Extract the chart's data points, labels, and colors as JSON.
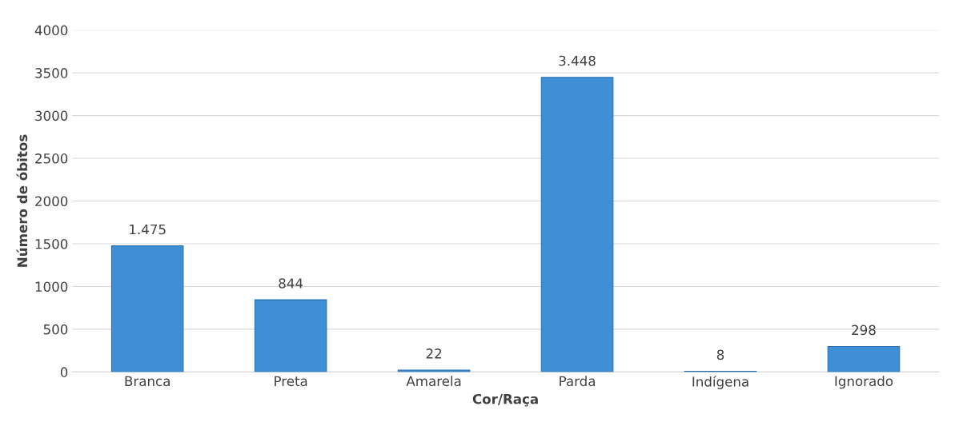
{
  "chart_data": {
    "type": "bar",
    "xlabel": "Cor/Raça",
    "ylabel": "Número de óbitos",
    "categories": [
      "Branca",
      "Preta",
      "Amarela",
      "Parda",
      "Indígena",
      "Ignorado"
    ],
    "values": [
      1475,
      844,
      22,
      3448,
      8,
      298
    ],
    "value_labels": [
      "1.475",
      "844",
      "22",
      "3.448",
      "8",
      "298"
    ],
    "color": "#3f8fd6",
    "ylim": [
      0,
      4000
    ],
    "yticks": [
      0,
      500,
      1000,
      1500,
      2000,
      2500,
      3000,
      3500,
      4000
    ],
    "grid": "y",
    "legend": false
  }
}
